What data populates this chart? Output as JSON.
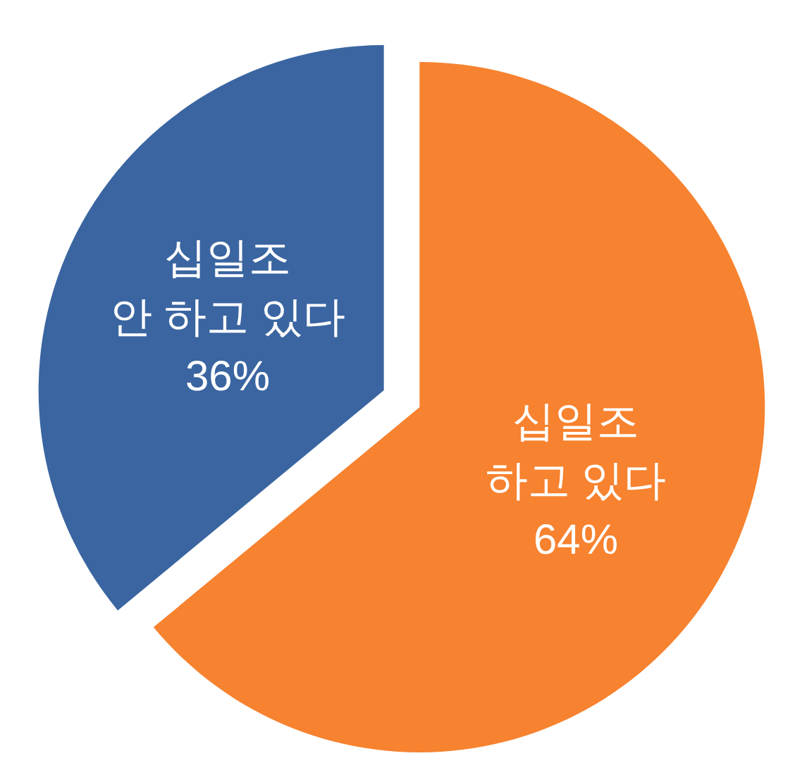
{
  "chart_data": {
    "type": "pie",
    "categories": [
      "십일조\n하고 있다",
      "십일조\n안 하고 있다"
    ],
    "values": [
      64,
      36
    ],
    "value_labels": [
      "64%",
      "36%"
    ],
    "colors": [
      "#f7822f",
      "#3a65a1"
    ]
  }
}
